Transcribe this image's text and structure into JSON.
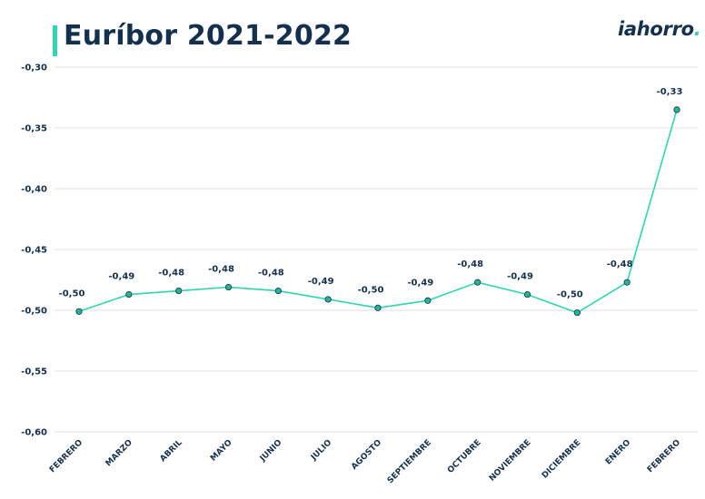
{
  "header": {
    "title": "Euríbor 2021-2022",
    "logo_text": "iahorro",
    "logo_dot": "."
  },
  "colors": {
    "accent": "#2fd4b0",
    "line": "#2fd4b0",
    "marker_fill": "#24b596",
    "text": "#14304f",
    "grid": "#e0e0e0"
  },
  "chart_data": {
    "type": "line",
    "title": "Euríbor 2021-2022",
    "xlabel": "",
    "ylabel": "",
    "categories": [
      "FEBRERO",
      "MARZO",
      "ABRIL",
      "MAYO",
      "JUNIO",
      "JULIO",
      "AGOSTO",
      "SEPTIEMBRE",
      "OCTUBRE",
      "NOVIEMBRE",
      "DICIEMBRE",
      "ENERO",
      "FEBRERO"
    ],
    "values": [
      -0.501,
      -0.487,
      -0.484,
      -0.481,
      -0.484,
      -0.491,
      -0.498,
      -0.492,
      -0.477,
      -0.487,
      -0.502,
      -0.477,
      -0.335
    ],
    "data_labels": [
      "-0,50",
      "-0,49",
      "-0,48",
      "-0,48",
      "-0,48",
      "-0,49",
      "-0,50",
      "-0,49",
      "-0,48",
      "-0,49",
      "-0,50",
      "-0,48",
      "-0,33"
    ],
    "ylim": [
      -0.6,
      -0.3
    ],
    "yticks": [
      -0.3,
      -0.35,
      -0.4,
      -0.45,
      -0.5,
      -0.55,
      -0.6
    ],
    "ytick_labels": [
      "-0,30",
      "-0,35",
      "-0,40",
      "-0,45",
      "-0,50",
      "-0,55",
      "-0,60"
    ],
    "grid": true,
    "legend": "none"
  }
}
